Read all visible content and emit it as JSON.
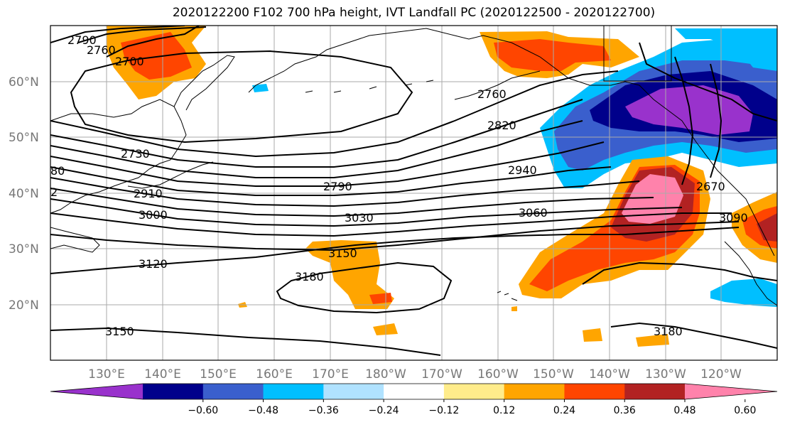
{
  "title": "2020122200 F102 700 hPa height, IVT Landfall PC (2020122500 - 2020122700)",
  "lat_labels": [
    "60°N",
    "50°N",
    "40°N",
    "30°N",
    "20°N"
  ],
  "lon_labels": [
    "130°E",
    "140°E",
    "150°E",
    "160°E",
    "170°E",
    "180°W",
    "170°W",
    "160°W",
    "150°W",
    "140°W",
    "130°W",
    "120°W"
  ],
  "colorbar": {
    "tick_labels": [
      "−0.60",
      "−0.48",
      "−0.36",
      "−0.24",
      "−0.12",
      "0.12",
      "0.24",
      "0.36",
      "0.48",
      "0.60"
    ],
    "colors": [
      "#9932cc",
      "#00008b",
      "#3a5fcd",
      "#00bfff",
      "#b0e2ff",
      "#ffffff",
      "#ffec8b",
      "#ffa500",
      "#ff4500",
      "#b22222",
      "#ff82ab"
    ]
  },
  "contour_labels": [
    "2790",
    "2760",
    "2700",
    "2760",
    "2820",
    "2940",
    "3060",
    "3090",
    "2730",
    "2910",
    "3000",
    "2790",
    "3030",
    "3150",
    "3180",
    "3120",
    "3150",
    "3180",
    "2670",
    "80",
    "2"
  ]
}
